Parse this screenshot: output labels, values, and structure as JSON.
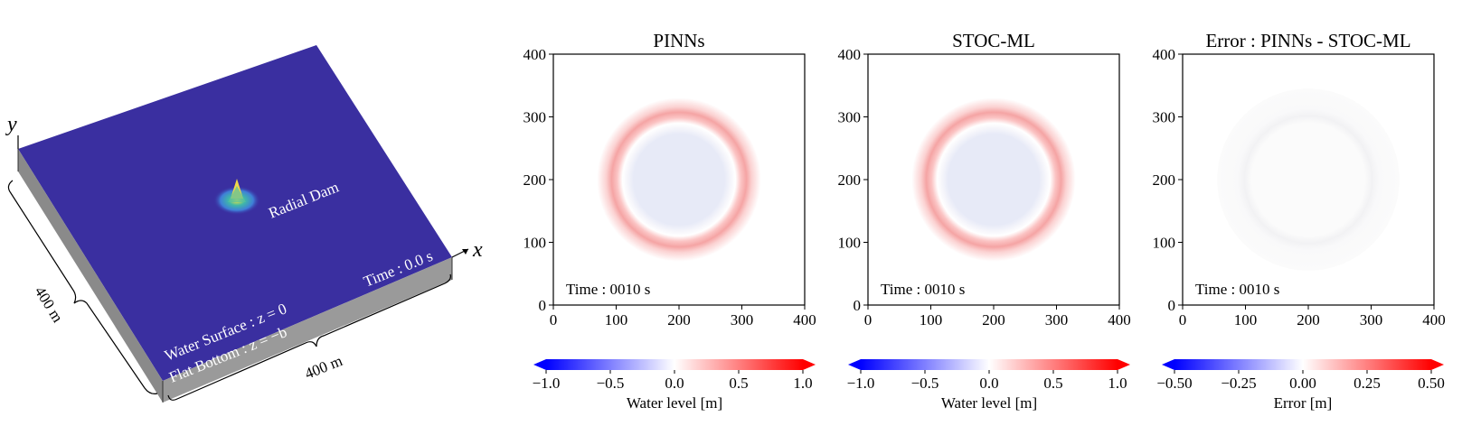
{
  "schematic": {
    "axis_y": "y",
    "axis_x": "x",
    "dam_label": "Radial Dam",
    "time_label": "Time : 0.0 s",
    "water_surface_label": "Water Surface : z = 0",
    "flat_bottom_label": "Flat Bottom : z = −b",
    "side_length_left": "400 m",
    "side_length_bottom": "400 m",
    "colors": {
      "surface": "#3a2fa0",
      "side": "#8a8a8a",
      "peak": "#f5e33b"
    }
  },
  "chart_data": [
    {
      "type": "heatmap",
      "title": "PINNs",
      "xlim": [
        0,
        400
      ],
      "ylim": [
        0,
        400
      ],
      "xticks": [
        0,
        100,
        200,
        300,
        400
      ],
      "yticks": [
        0,
        100,
        200,
        300,
        400
      ],
      "annotation": "Time : 0010 s",
      "center": [
        200,
        200
      ],
      "ring_radius": 100,
      "ring_peak": 0.3,
      "inner_level": -0.1,
      "colorbar": {
        "label": "Water level [m]",
        "ticks": [
          "−1.0",
          "−0.5",
          "0.0",
          "0.5",
          "1.0"
        ],
        "range": [
          -1.0,
          1.0
        ]
      }
    },
    {
      "type": "heatmap",
      "title": "STOC-ML",
      "xlim": [
        0,
        400
      ],
      "ylim": [
        0,
        400
      ],
      "xticks": [
        0,
        100,
        200,
        300,
        400
      ],
      "yticks": [
        0,
        100,
        200,
        300,
        400
      ],
      "annotation": "Time : 0010 s",
      "center": [
        200,
        200
      ],
      "ring_radius": 100,
      "ring_peak": 0.3,
      "inner_level": -0.1,
      "colorbar": {
        "label": "Water level [m]",
        "ticks": [
          "−1.0",
          "−0.5",
          "0.0",
          "0.5",
          "1.0"
        ],
        "range": [
          -1.0,
          1.0
        ]
      }
    },
    {
      "type": "heatmap",
      "title": "Error : PINNs - STOC-ML",
      "xlim": [
        0,
        400
      ],
      "ylim": [
        0,
        400
      ],
      "xticks": [
        0,
        100,
        200,
        300,
        400
      ],
      "yticks": [
        0,
        100,
        200,
        300,
        400
      ],
      "annotation": "Time : 0010 s",
      "center": [
        200,
        200
      ],
      "ring_radius": 100,
      "ring_peak": 0.0,
      "inner_level": 0.0,
      "colorbar": {
        "label": "Error [m]",
        "ticks": [
          "−0.50",
          "−0.25",
          "0.00",
          "0.25",
          "0.50"
        ],
        "range": [
          -0.5,
          0.5
        ]
      }
    }
  ]
}
